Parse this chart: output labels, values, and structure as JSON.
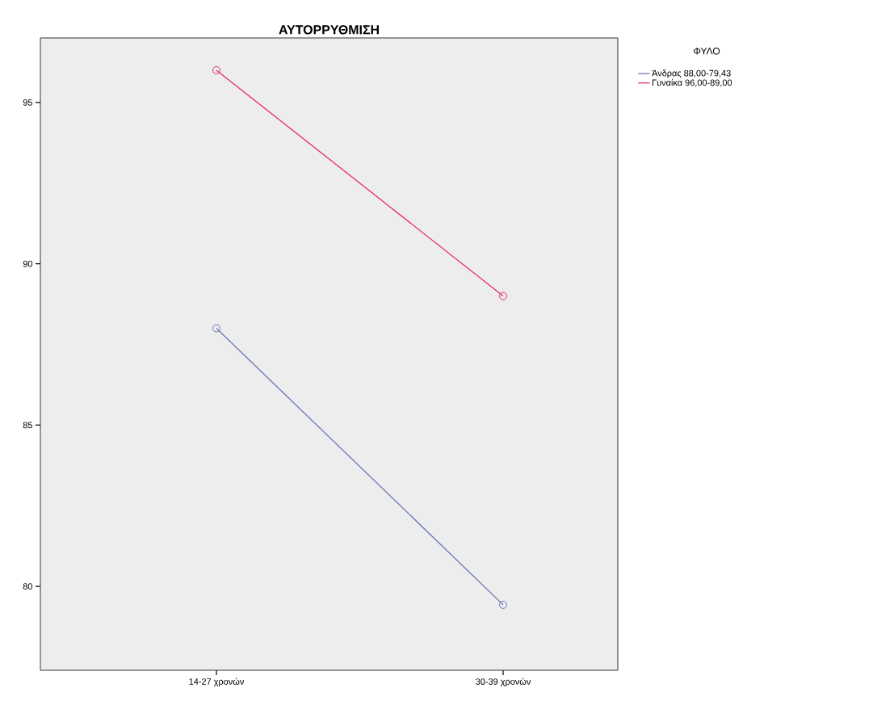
{
  "chart_data": {
    "type": "line",
    "title": "ΑΥΤΟΡΡΥΘΜΙΣΗ",
    "legend_title": "ΦΥΛΟ",
    "categories": [
      "14-27 χρονών",
      "30-39 χρονών"
    ],
    "series": [
      {
        "name": "Άνδρας 88,00-79,43",
        "color": "#6a76b8",
        "values": [
          88.0,
          79.43
        ]
      },
      {
        "name": "Γυναίκα 96,00-89,00",
        "color": "#e8286e",
        "values": [
          96.0,
          89.0
        ]
      }
    ],
    "ylim": [
      77.4,
      97.0
    ],
    "yticks": [
      80,
      85,
      90,
      95
    ],
    "legend": "top right",
    "marker": "circle",
    "line_style": "solid"
  }
}
